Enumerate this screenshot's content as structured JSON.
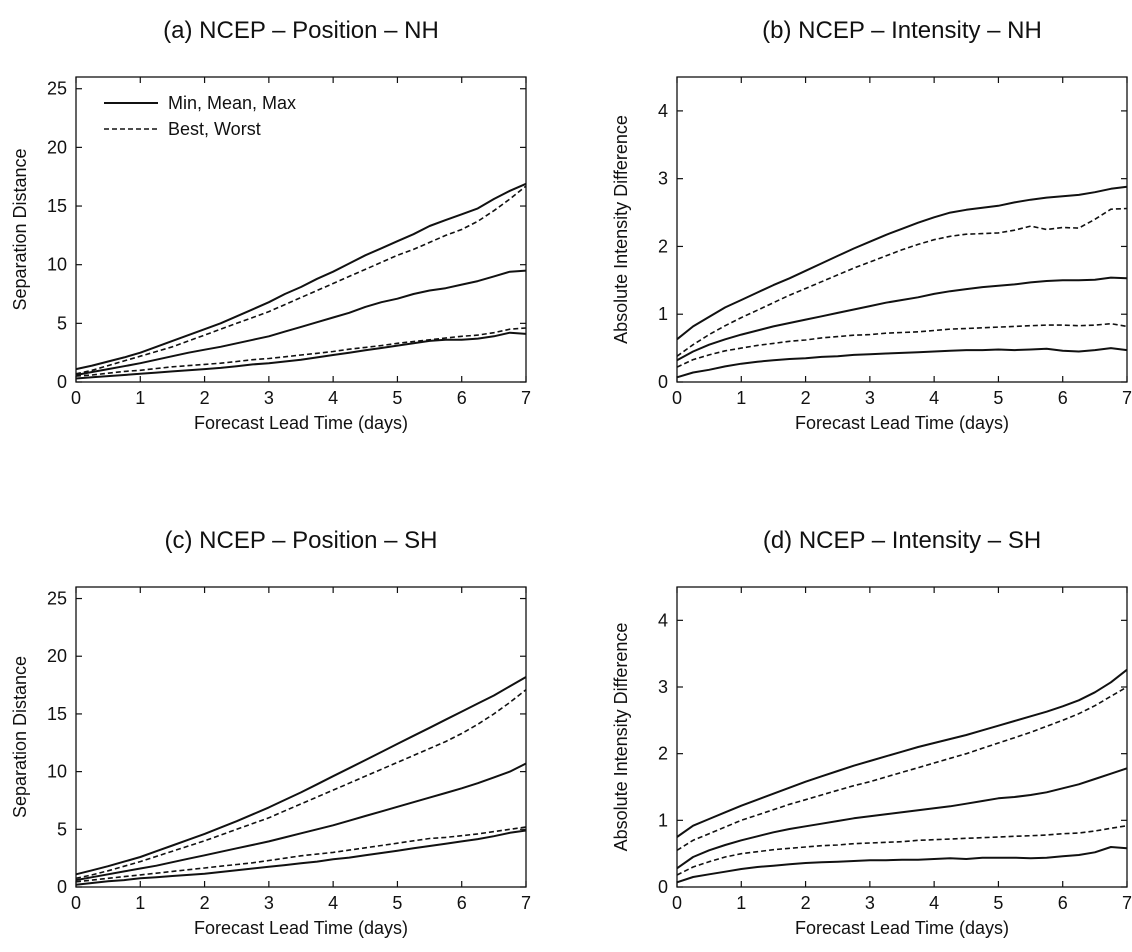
{
  "chart_data": [
    {
      "type": "line",
      "title": "(a) NCEP – Position – NH",
      "xlabel": "Forecast Lead Time (days)",
      "ylabel": "Separation Distance",
      "xlim": [
        0,
        7
      ],
      "ylim": [
        0,
        26
      ],
      "xticks": [
        "0",
        "1",
        "2",
        "3",
        "4",
        "5",
        "6",
        "7"
      ],
      "yticks": [
        "0",
        "5",
        "10",
        "15",
        "20",
        "25"
      ],
      "legend": {
        "position": "top-left",
        "entries": [
          {
            "label": "Min, Mean, Max",
            "style": "solid"
          },
          {
            "label": "Best, Worst",
            "style": "dashed"
          }
        ]
      },
      "x": [
        0,
        0.25,
        0.5,
        0.75,
        1,
        1.25,
        1.5,
        1.75,
        2,
        2.25,
        2.5,
        2.75,
        3,
        3.25,
        3.5,
        3.75,
        4,
        4.25,
        4.5,
        4.75,
        5,
        5.25,
        5.5,
        5.75,
        6,
        6.25,
        6.5,
        6.75,
        7
      ],
      "series": [
        {
          "style": "solid",
          "values": [
            0.3,
            0.4,
            0.5,
            0.6,
            0.7,
            0.8,
            0.9,
            1.0,
            1.1,
            1.2,
            1.35,
            1.5,
            1.6,
            1.75,
            1.9,
            2.1,
            2.3,
            2.5,
            2.7,
            2.9,
            3.1,
            3.3,
            3.5,
            3.6,
            3.6,
            3.7,
            3.9,
            4.2,
            4.1
          ]
        },
        {
          "style": "dashed",
          "values": [
            0.5,
            0.6,
            0.75,
            0.9,
            1.0,
            1.15,
            1.3,
            1.4,
            1.5,
            1.6,
            1.75,
            1.9,
            2.0,
            2.15,
            2.3,
            2.45,
            2.6,
            2.8,
            2.95,
            3.1,
            3.3,
            3.45,
            3.6,
            3.75,
            3.9,
            4.0,
            4.2,
            4.5,
            4.6
          ]
        },
        {
          "style": "solid",
          "values": [
            0.6,
            0.85,
            1.1,
            1.35,
            1.6,
            1.9,
            2.2,
            2.5,
            2.75,
            3.0,
            3.3,
            3.6,
            3.9,
            4.3,
            4.7,
            5.1,
            5.5,
            5.9,
            6.4,
            6.8,
            7.1,
            7.5,
            7.8,
            8.0,
            8.3,
            8.6,
            9.0,
            9.4,
            9.5
          ]
        },
        {
          "style": "dashed",
          "values": [
            0.7,
            1.0,
            1.4,
            1.8,
            2.2,
            2.6,
            3.0,
            3.5,
            4.0,
            4.5,
            5.0,
            5.5,
            6.0,
            6.6,
            7.2,
            7.8,
            8.4,
            9.0,
            9.6,
            10.2,
            10.8,
            11.3,
            11.9,
            12.5,
            13.0,
            13.7,
            14.6,
            15.6,
            16.7
          ]
        },
        {
          "style": "solid",
          "values": [
            1.1,
            1.4,
            1.75,
            2.1,
            2.5,
            3.0,
            3.5,
            4.0,
            4.5,
            5.0,
            5.6,
            6.2,
            6.8,
            7.5,
            8.1,
            8.8,
            9.4,
            10.1,
            10.8,
            11.4,
            12.0,
            12.6,
            13.3,
            13.8,
            14.3,
            14.8,
            15.6,
            16.3,
            16.9
          ]
        }
      ]
    },
    {
      "type": "line",
      "title": "(b) NCEP – Intensity – NH",
      "xlabel": "Forecast Lead Time (days)",
      "ylabel": "Absolute Intensity Difference",
      "xlim": [
        0,
        7
      ],
      "ylim": [
        0,
        4.5
      ],
      "xticks": [
        "0",
        "1",
        "2",
        "3",
        "4",
        "5",
        "6",
        "7"
      ],
      "yticks": [
        "0",
        "1",
        "2",
        "3",
        "4"
      ],
      "x": [
        0,
        0.25,
        0.5,
        0.75,
        1,
        1.25,
        1.5,
        1.75,
        2,
        2.25,
        2.5,
        2.75,
        3,
        3.25,
        3.5,
        3.75,
        4,
        4.25,
        4.5,
        4.75,
        5,
        5.25,
        5.5,
        5.75,
        6,
        6.25,
        6.5,
        6.75,
        7
      ],
      "series": [
        {
          "style": "solid",
          "values": [
            0.07,
            0.14,
            0.18,
            0.23,
            0.27,
            0.3,
            0.32,
            0.34,
            0.35,
            0.37,
            0.38,
            0.4,
            0.41,
            0.42,
            0.43,
            0.44,
            0.45,
            0.46,
            0.47,
            0.47,
            0.48,
            0.47,
            0.48,
            0.49,
            0.46,
            0.45,
            0.47,
            0.5,
            0.47
          ]
        },
        {
          "style": "dashed",
          "values": [
            0.22,
            0.33,
            0.4,
            0.46,
            0.5,
            0.54,
            0.57,
            0.6,
            0.62,
            0.65,
            0.67,
            0.69,
            0.7,
            0.72,
            0.73,
            0.74,
            0.76,
            0.78,
            0.79,
            0.8,
            0.81,
            0.82,
            0.83,
            0.84,
            0.84,
            0.83,
            0.84,
            0.86,
            0.82
          ]
        },
        {
          "style": "solid",
          "values": [
            0.32,
            0.45,
            0.55,
            0.63,
            0.7,
            0.76,
            0.82,
            0.87,
            0.92,
            0.97,
            1.02,
            1.07,
            1.12,
            1.17,
            1.21,
            1.25,
            1.3,
            1.34,
            1.37,
            1.4,
            1.42,
            1.44,
            1.47,
            1.49,
            1.5,
            1.5,
            1.51,
            1.54,
            1.53
          ]
        },
        {
          "style": "dashed",
          "values": [
            0.38,
            0.55,
            0.7,
            0.83,
            0.95,
            1.06,
            1.17,
            1.28,
            1.38,
            1.48,
            1.58,
            1.68,
            1.77,
            1.86,
            1.95,
            2.03,
            2.1,
            2.15,
            2.18,
            2.19,
            2.2,
            2.24,
            2.3,
            2.25,
            2.28,
            2.27,
            2.4,
            2.55,
            2.56
          ]
        },
        {
          "style": "solid",
          "values": [
            0.63,
            0.82,
            0.96,
            1.1,
            1.21,
            1.32,
            1.43,
            1.53,
            1.64,
            1.75,
            1.86,
            1.97,
            2.07,
            2.17,
            2.26,
            2.35,
            2.43,
            2.5,
            2.54,
            2.57,
            2.6,
            2.65,
            2.69,
            2.72,
            2.74,
            2.76,
            2.8,
            2.85,
            2.88
          ]
        }
      ]
    },
    {
      "type": "line",
      "title": "(c) NCEP – Position – SH",
      "xlabel": "Forecast Lead Time (days)",
      "ylabel": "Separation Distance",
      "xlim": [
        0,
        7
      ],
      "ylim": [
        0,
        26
      ],
      "xticks": [
        "0",
        "1",
        "2",
        "3",
        "4",
        "5",
        "6",
        "7"
      ],
      "yticks": [
        "0",
        "5",
        "10",
        "15",
        "20",
        "25"
      ],
      "x": [
        0,
        0.25,
        0.5,
        0.75,
        1,
        1.25,
        1.5,
        1.75,
        2,
        2.25,
        2.5,
        2.75,
        3,
        3.25,
        3.5,
        3.75,
        4,
        4.25,
        4.5,
        4.75,
        5,
        5.25,
        5.5,
        5.75,
        6,
        6.25,
        6.5,
        6.75,
        7
      ],
      "series": [
        {
          "style": "solid",
          "values": [
            0.2,
            0.35,
            0.5,
            0.6,
            0.75,
            0.85,
            0.95,
            1.05,
            1.15,
            1.3,
            1.45,
            1.6,
            1.75,
            1.9,
            2.05,
            2.2,
            2.4,
            2.55,
            2.75,
            2.95,
            3.15,
            3.35,
            3.55,
            3.75,
            3.95,
            4.15,
            4.4,
            4.7,
            4.9
          ]
        },
        {
          "style": "dashed",
          "values": [
            0.45,
            0.6,
            0.75,
            0.9,
            1.05,
            1.2,
            1.35,
            1.5,
            1.65,
            1.8,
            1.95,
            2.1,
            2.3,
            2.5,
            2.7,
            2.85,
            3.0,
            3.2,
            3.4,
            3.6,
            3.8,
            4.0,
            4.2,
            4.3,
            4.45,
            4.6,
            4.8,
            5.0,
            5.2
          ]
        },
        {
          "style": "solid",
          "values": [
            0.6,
            0.85,
            1.1,
            1.35,
            1.6,
            1.85,
            2.15,
            2.45,
            2.75,
            3.05,
            3.35,
            3.65,
            3.95,
            4.3,
            4.65,
            5.0,
            5.35,
            5.75,
            6.15,
            6.55,
            6.95,
            7.35,
            7.75,
            8.15,
            8.55,
            9.0,
            9.5,
            10.0,
            10.7
          ]
        },
        {
          "style": "dashed",
          "values": [
            0.75,
            1.05,
            1.4,
            1.8,
            2.2,
            2.65,
            3.1,
            3.55,
            4.0,
            4.5,
            5.0,
            5.5,
            6.0,
            6.6,
            7.2,
            7.8,
            8.4,
            9.0,
            9.6,
            10.2,
            10.8,
            11.4,
            12.0,
            12.6,
            13.3,
            14.1,
            15.0,
            16.0,
            17.1
          ]
        },
        {
          "style": "solid",
          "values": [
            1.1,
            1.45,
            1.8,
            2.2,
            2.6,
            3.1,
            3.6,
            4.1,
            4.6,
            5.15,
            5.7,
            6.3,
            6.9,
            7.55,
            8.2,
            8.9,
            9.6,
            10.3,
            11.0,
            11.7,
            12.4,
            13.1,
            13.8,
            14.5,
            15.2,
            15.9,
            16.6,
            17.4,
            18.2
          ]
        }
      ]
    },
    {
      "type": "line",
      "title": "(d) NCEP – Intensity – SH",
      "xlabel": "Forecast Lead Time (days)",
      "ylabel": "Absolute Intensity Difference",
      "xlim": [
        0,
        7
      ],
      "ylim": [
        0,
        4.5
      ],
      "xticks": [
        "0",
        "1",
        "2",
        "3",
        "4",
        "5",
        "6",
        "7"
      ],
      "yticks": [
        "0",
        "1",
        "2",
        "3",
        "4"
      ],
      "x": [
        0,
        0.25,
        0.5,
        0.75,
        1,
        1.25,
        1.5,
        1.75,
        2,
        2.25,
        2.5,
        2.75,
        3,
        3.25,
        3.5,
        3.75,
        4,
        4.25,
        4.5,
        4.75,
        5,
        5.25,
        5.5,
        5.75,
        6,
        6.25,
        6.5,
        6.75,
        7
      ],
      "series": [
        {
          "style": "solid",
          "values": [
            0.07,
            0.15,
            0.19,
            0.23,
            0.27,
            0.3,
            0.32,
            0.34,
            0.36,
            0.37,
            0.38,
            0.39,
            0.4,
            0.4,
            0.41,
            0.41,
            0.42,
            0.43,
            0.42,
            0.44,
            0.44,
            0.44,
            0.43,
            0.44,
            0.46,
            0.48,
            0.52,
            0.6,
            0.58
          ]
        },
        {
          "style": "dashed",
          "values": [
            0.18,
            0.3,
            0.38,
            0.45,
            0.5,
            0.53,
            0.56,
            0.58,
            0.6,
            0.62,
            0.63,
            0.65,
            0.66,
            0.67,
            0.68,
            0.7,
            0.71,
            0.72,
            0.73,
            0.74,
            0.75,
            0.76,
            0.77,
            0.78,
            0.8,
            0.81,
            0.84,
            0.88,
            0.92
          ]
        },
        {
          "style": "solid",
          "values": [
            0.28,
            0.45,
            0.55,
            0.63,
            0.7,
            0.76,
            0.82,
            0.87,
            0.91,
            0.95,
            0.99,
            1.03,
            1.06,
            1.09,
            1.12,
            1.15,
            1.18,
            1.21,
            1.25,
            1.29,
            1.33,
            1.35,
            1.38,
            1.42,
            1.48,
            1.54,
            1.62,
            1.7,
            1.78
          ]
        },
        {
          "style": "dashed",
          "values": [
            0.55,
            0.7,
            0.8,
            0.9,
            1.0,
            1.08,
            1.16,
            1.24,
            1.31,
            1.38,
            1.45,
            1.52,
            1.58,
            1.65,
            1.72,
            1.79,
            1.86,
            1.93,
            2.0,
            2.08,
            2.16,
            2.24,
            2.32,
            2.41,
            2.5,
            2.6,
            2.72,
            2.86,
            3.0
          ]
        },
        {
          "style": "solid",
          "values": [
            0.75,
            0.92,
            1.02,
            1.12,
            1.22,
            1.31,
            1.4,
            1.49,
            1.58,
            1.66,
            1.74,
            1.82,
            1.89,
            1.96,
            2.03,
            2.1,
            2.16,
            2.22,
            2.28,
            2.35,
            2.42,
            2.49,
            2.56,
            2.63,
            2.71,
            2.8,
            2.92,
            3.07,
            3.26
          ]
        }
      ]
    }
  ]
}
